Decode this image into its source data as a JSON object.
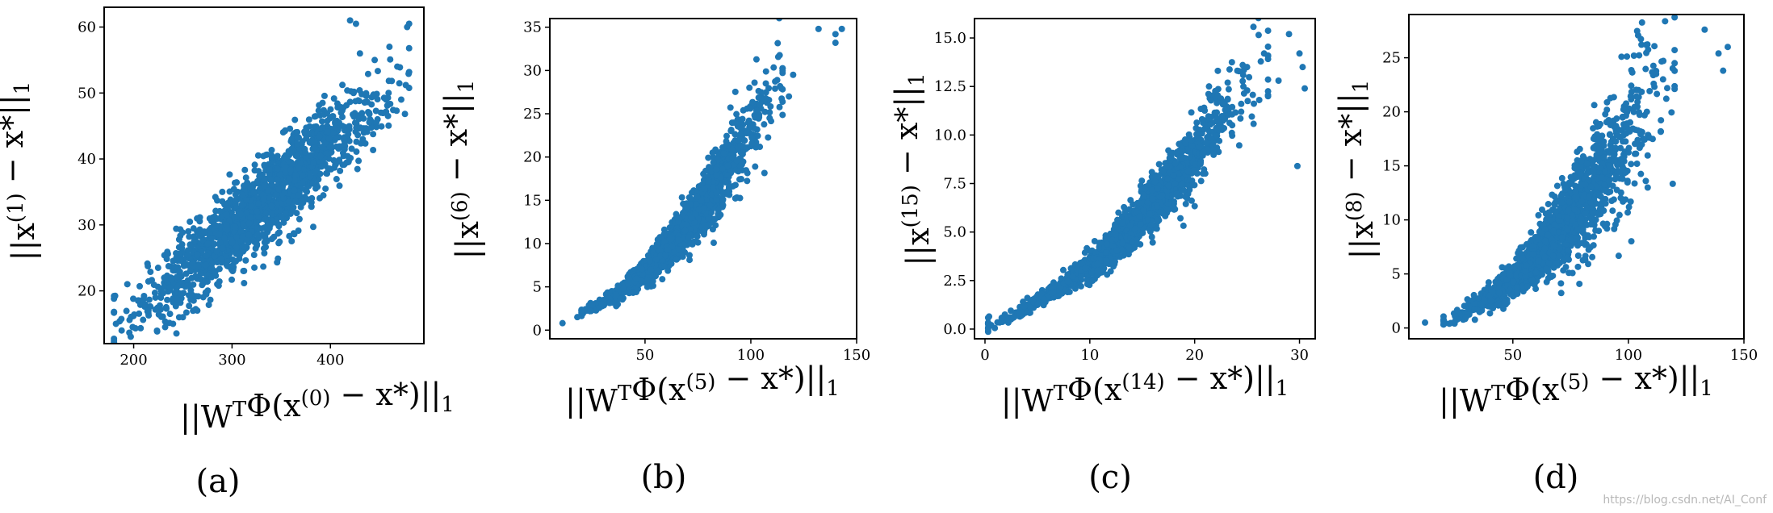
{
  "colors": {
    "points": "#1f77b4",
    "frame": "#000000",
    "watermark": "#b8b8b8"
  },
  "watermark": "https://blog.csdn.net/AI_Conf",
  "chart_data": [
    {
      "type": "scatter",
      "sublabel": "(a)",
      "xlabel": "||W^TΦ(x^(0) − x*)||_1",
      "ylabel": "||x^(1) − x*||_1",
      "xlim": [
        170,
        495
      ],
      "ylim": [
        12,
        63
      ],
      "xticks": [
        200,
        300,
        400
      ],
      "yticks": [
        20,
        30,
        40,
        50,
        60
      ],
      "grid": false,
      "trend": {
        "x_range": [
          180,
          480
        ],
        "slope": 0.128,
        "intercept": -9.2,
        "noise": 3.2,
        "n": 1600
      },
      "points": [
        [
          182,
          15
        ],
        [
          215,
          17
        ],
        [
          232,
          14.5
        ],
        [
          240,
          15
        ],
        [
          250,
          16
        ],
        [
          420,
          61
        ],
        [
          426,
          60.5
        ],
        [
          478,
          60
        ],
        [
          480,
          60.5
        ],
        [
          468,
          54
        ],
        [
          472,
          49
        ],
        [
          460,
          57
        ],
        [
          430,
          56
        ],
        [
          445,
          55
        ]
      ]
    },
    {
      "type": "scatter",
      "sublabel": "(b)",
      "xlabel": "||W^TΦ(x^(5) − x*)||_1",
      "ylabel": "||x^(6) − x*||_1",
      "xlim": [
        5,
        150
      ],
      "ylim": [
        -1,
        36
      ],
      "xticks": [
        50,
        100,
        150
      ],
      "yticks": [
        0,
        5,
        10,
        15,
        20,
        25,
        30,
        35
      ],
      "grid": false,
      "trend": {
        "x_range": [
          20,
          115
        ],
        "a": 0.0022,
        "b": 0.001,
        "intercept": 1.2,
        "noise": 0.9,
        "n": 1600
      },
      "points": [
        [
          11,
          0.8
        ],
        [
          18,
          1.5
        ],
        [
          24,
          2.2
        ],
        [
          132,
          34.8
        ],
        [
          140,
          34.2
        ],
        [
          140,
          33.2
        ],
        [
          143,
          34.8
        ],
        [
          120,
          29.5
        ],
        [
          118,
          27
        ]
      ]
    },
    {
      "type": "scatter",
      "sublabel": "(c)",
      "xlabel": "||W^TΦ(x^(14) − x*)||_1",
      "ylabel": "||x^(15) − x*||_1",
      "xlim": [
        -1,
        31.5
      ],
      "ylim": [
        -0.5,
        16
      ],
      "xticks": [
        0,
        10,
        20,
        30
      ],
      "yticks": [
        0.0,
        2.5,
        5.0,
        7.5,
        10.0,
        12.5,
        15.0
      ],
      "grid": false,
      "trend": {
        "x_range": [
          0.3,
          27
        ],
        "a": 0.0125,
        "b": 0.19,
        "intercept": 0.15,
        "noise": 0.85,
        "n": 1600
      },
      "points": [
        [
          0.3,
          0.3
        ],
        [
          0.6,
          0.2
        ],
        [
          29,
          15.2
        ],
        [
          30,
          14.2
        ],
        [
          30.3,
          13.5
        ],
        [
          30.5,
          12.4
        ],
        [
          29.8,
          8.4
        ],
        [
          28,
          12.8
        ],
        [
          27,
          12.0
        ],
        [
          25,
          13.5
        ]
      ]
    },
    {
      "type": "scatter",
      "sublabel": "(d)",
      "xlabel": "||W^TΦ(x^(5) − x*)||_1",
      "ylabel": "||x^(8) − x*||_1",
      "xlim": [
        5,
        150
      ],
      "ylim": [
        -1,
        29
      ],
      "xticks": [
        50,
        100,
        150
      ],
      "yticks": [
        0,
        5,
        10,
        15,
        20,
        25
      ],
      "grid": false,
      "trend": {
        "x_range": [
          20,
          120
        ],
        "a": 0.0018,
        "b": 0.0,
        "intercept": 0.0,
        "noise": 1.6,
        "n": 1600
      },
      "points": [
        [
          12,
          0.5
        ],
        [
          20,
          0.7
        ],
        [
          26,
          0.8
        ],
        [
          133,
          27.6
        ],
        [
          139,
          25.4
        ],
        [
          141,
          23.8
        ],
        [
          143,
          26.0
        ],
        [
          120,
          24.5
        ],
        [
          115,
          23
        ],
        [
          112,
          23.5
        ],
        [
          108,
          20
        ]
      ]
    }
  ]
}
